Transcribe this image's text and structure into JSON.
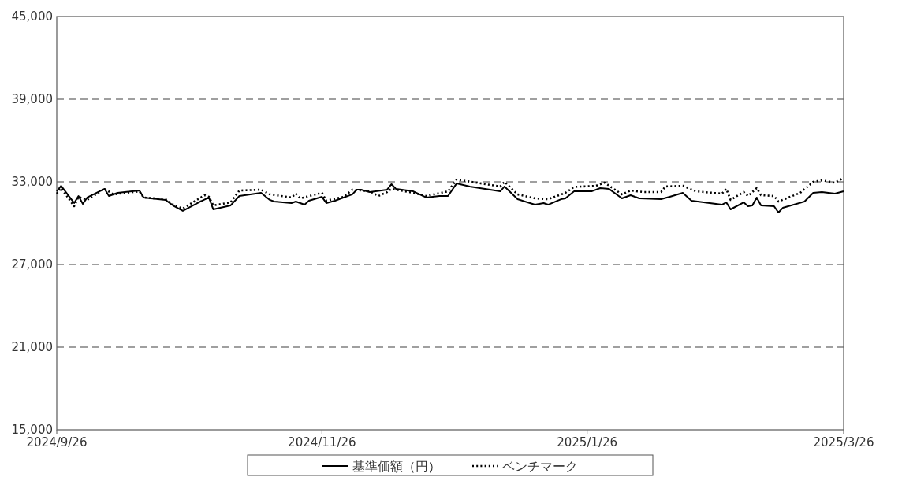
{
  "chart_data": {
    "type": "line",
    "xlim": [
      "2024-09-26",
      "2025-03-26"
    ],
    "ylim": [
      15000,
      45000
    ],
    "xticks": [
      {
        "value": "2024-09-26",
        "label": "2024/9/26"
      },
      {
        "value": "2024-11-26",
        "label": "2024/11/26"
      },
      {
        "value": "2025-01-26",
        "label": "2025/1/26"
      },
      {
        "value": "2025-03-26",
        "label": "2025/3/26"
      }
    ],
    "yticks": [
      {
        "value": 15000,
        "label": "15,000"
      },
      {
        "value": 21000,
        "label": "21,000"
      },
      {
        "value": 27000,
        "label": "27,000"
      },
      {
        "value": 33000,
        "label": "33,000"
      },
      {
        "value": 39000,
        "label": "39,000"
      },
      {
        "value": 45000,
        "label": "45,000"
      }
    ],
    "grid": "y",
    "legend": "bottom",
    "series": [
      {
        "name": "基準価額（円）",
        "color": "#000000",
        "line_style": "solid",
        "x": [
          "2024-09-26",
          "2024-09-27",
          "2024-09-30",
          "2024-10-01",
          "2024-10-02",
          "2024-10-03",
          "2024-10-07",
          "2024-10-08",
          "2024-10-10",
          "2024-10-15",
          "2024-10-16",
          "2024-10-21",
          "2024-10-23",
          "2024-10-25",
          "2024-10-29",
          "2024-10-31",
          "2024-11-01",
          "2024-11-05",
          "2024-11-07",
          "2024-11-12",
          "2024-11-14",
          "2024-11-15",
          "2024-11-19",
          "2024-11-20",
          "2024-11-22",
          "2024-11-23",
          "2024-11-26",
          "2024-11-27",
          "2024-11-29",
          "2024-12-03",
          "2024-12-04",
          "2024-12-05",
          "2024-12-07",
          "2024-12-11",
          "2024-12-12",
          "2024-12-13",
          "2024-12-17",
          "2024-12-20",
          "2024-12-23",
          "2024-12-25",
          "2024-12-27",
          "2024-12-30",
          "2025-01-06",
          "2025-01-07",
          "2025-01-10",
          "2025-01-14",
          "2025-01-16",
          "2025-01-17",
          "2025-01-20",
          "2025-01-21",
          "2025-01-23",
          "2025-01-27",
          "2025-01-29",
          "2025-01-31",
          "2025-02-03",
          "2025-02-05",
          "2025-02-07",
          "2025-02-12",
          "2025-02-14",
          "2025-02-17",
          "2025-02-19",
          "2025-02-26",
          "2025-02-27",
          "2025-02-28",
          "2025-03-03",
          "2025-03-04",
          "2025-03-05",
          "2025-03-06",
          "2025-03-07",
          "2025-03-10",
          "2025-03-11",
          "2025-03-12",
          "2025-03-17",
          "2025-03-19",
          "2025-03-21",
          "2025-03-24",
          "2025-03-26"
        ],
        "values": [
          32310,
          32710,
          31460,
          31970,
          31400,
          31860,
          32490,
          31970,
          32200,
          32370,
          31860,
          31690,
          31230,
          30890,
          31570,
          31860,
          31000,
          31290,
          31970,
          32200,
          31690,
          31570,
          31460,
          31570,
          31340,
          31630,
          31910,
          31460,
          31630,
          32090,
          32430,
          32430,
          32260,
          32430,
          32830,
          32490,
          32310,
          31860,
          31970,
          31970,
          32890,
          32660,
          32310,
          32660,
          31740,
          31340,
          31460,
          31340,
          31740,
          31800,
          32310,
          32310,
          32540,
          32490,
          31800,
          32030,
          31800,
          31740,
          31910,
          32200,
          31630,
          31340,
          31510,
          31000,
          31510,
          31230,
          31290,
          31860,
          31290,
          31230,
          30770,
          31110,
          31570,
          32200,
          32260,
          32140,
          32310
        ]
      },
      {
        "name": "ベンチマーク",
        "color": "#000000",
        "line_style": "dotted",
        "x": [
          "2024-09-26",
          "2024-09-27",
          "2024-09-30",
          "2024-10-01",
          "2024-10-03",
          "2024-10-07",
          "2024-10-09",
          "2024-10-15",
          "2024-10-16",
          "2024-10-21",
          "2024-10-23",
          "2024-10-25",
          "2024-10-30",
          "2024-10-31",
          "2024-11-01",
          "2024-11-05",
          "2024-11-07",
          "2024-11-12",
          "2024-11-14",
          "2024-11-19",
          "2024-11-20",
          "2024-11-21",
          "2024-11-26",
          "2024-11-27",
          "2024-12-01",
          "2024-12-03",
          "2024-12-07",
          "2024-12-09",
          "2024-12-11",
          "2024-12-12",
          "2024-12-17",
          "2024-12-20",
          "2024-12-25",
          "2024-12-27",
          "2025-01-06",
          "2025-01-07",
          "2025-01-10",
          "2025-01-14",
          "2025-01-17",
          "2025-01-21",
          "2025-01-23",
          "2025-01-28",
          "2025-01-30",
          "2025-02-03",
          "2025-02-05",
          "2025-02-08",
          "2025-02-12",
          "2025-02-13",
          "2025-02-17",
          "2025-02-20",
          "2025-02-26",
          "2025-02-27",
          "2025-02-28",
          "2025-03-03",
          "2025-03-04",
          "2025-03-06",
          "2025-03-07",
          "2025-03-10",
          "2025-03-11",
          "2025-03-16",
          "2025-03-19",
          "2025-03-21",
          "2025-03-24",
          "2025-03-26"
        ],
        "values": [
          32140,
          32540,
          31230,
          31910,
          31690,
          32490,
          32090,
          32310,
          31860,
          31740,
          31290,
          31060,
          32030,
          31910,
          31290,
          31510,
          32370,
          32430,
          32090,
          31860,
          32140,
          31800,
          32200,
          31630,
          31910,
          32430,
          32310,
          31970,
          32260,
          32490,
          32200,
          31970,
          32310,
          33170,
          32660,
          33000,
          32090,
          31800,
          31740,
          32200,
          32630,
          32710,
          32940,
          32090,
          32370,
          32260,
          32260,
          32660,
          32710,
          32310,
          32140,
          32490,
          31690,
          32260,
          31970,
          32540,
          32030,
          31970,
          31570,
          32200,
          33000,
          33110,
          32940,
          33290
        ]
      }
    ]
  }
}
